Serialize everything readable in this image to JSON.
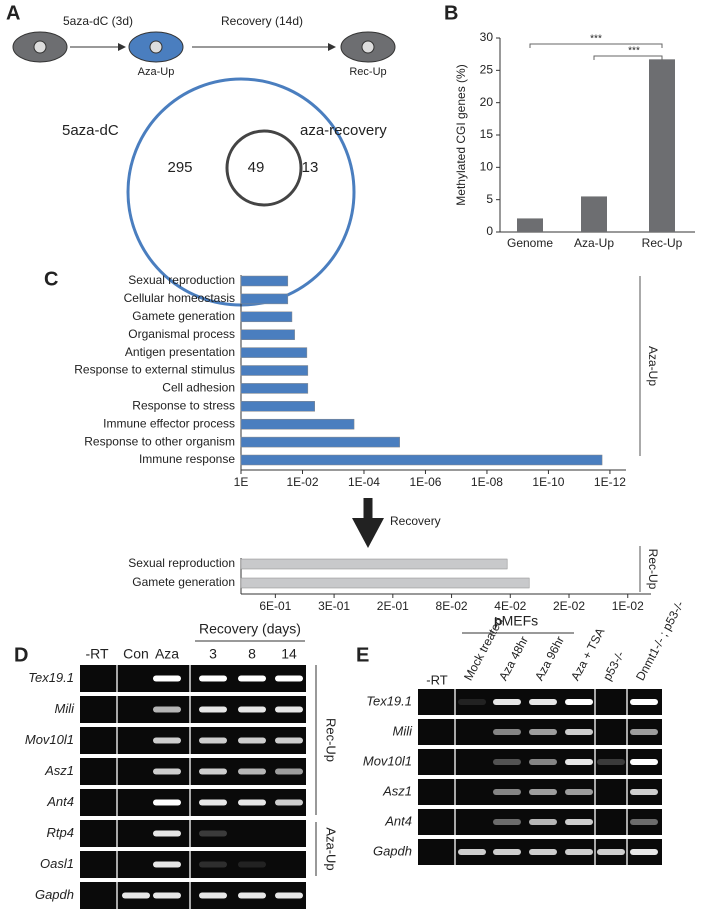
{
  "panels": {
    "a": "A",
    "b": "B",
    "c": "C",
    "d": "D",
    "e": "E"
  },
  "panel_a": {
    "step1": "5aza-dC (3d)",
    "step2": "Recovery (14d)",
    "cell2": "Aza-Up",
    "cell3": "Rec-Up",
    "venn": {
      "left_label": "5aza-dC",
      "right_label": "aza-recovery",
      "left_only": "295",
      "overlap": "49",
      "right_only": "13"
    }
  },
  "chart_data": [
    {
      "type": "bar",
      "y_label": "Methylated CGI genes (%)",
      "categories": [
        "Genome",
        "Aza-Up",
        "Rec-Up"
      ],
      "values": [
        2.1,
        5.5,
        26.7
      ],
      "color": "#6d6e71",
      "ylim": [
        0,
        30
      ],
      "yticks": [
        0,
        5,
        10,
        15,
        20,
        25,
        30
      ],
      "annotations": [
        "***",
        "***"
      ]
    },
    {
      "type": "barh",
      "group_label": "Aza-Up",
      "categories": [
        "Sexual reproduction",
        "Cellular homeostasis",
        "Gamete generation",
        "Organismal process",
        "Antigen presentation",
        "Response to external stimulus",
        "Cell adhesion",
        "Response to stress",
        "Immune effector process",
        "Response to other organism",
        "Immune response"
      ],
      "values": [
        0.03,
        0.03,
        0.022,
        0.018,
        0.0072,
        0.0067,
        0.0067,
        0.004,
        0.00021,
        6.9e-06,
        1.8e-12
      ],
      "color": "#4a7ebf",
      "log_scale": true,
      "xlim": [
        1,
        3e-13
      ],
      "xticks": [
        {
          "value": 1,
          "label": "1E"
        },
        {
          "value": 0.01,
          "label": "1E-02"
        },
        {
          "value": 0.0001,
          "label": "1E-04"
        },
        {
          "value": 1e-06,
          "label": "1E-06"
        },
        {
          "value": 1e-08,
          "label": "1E-08"
        },
        {
          "value": 1e-10,
          "label": "1E-10"
        },
        {
          "value": 1e-12,
          "label": "1E-12"
        }
      ]
    },
    {
      "type": "barh",
      "group_label": "Rec-Up",
      "categories": [
        "Sexual reproduction",
        "Gamete generation"
      ],
      "values": [
        0.0415,
        0.032
      ],
      "color": "#c8c9cb",
      "log_scale": true,
      "xlim": [
        0.96,
        0.0076
      ],
      "xticks": [
        {
          "value": 0.64,
          "label": "6E-01"
        },
        {
          "value": 0.32,
          "label": "3E-01"
        },
        {
          "value": 0.16,
          "label": "2E-01"
        },
        {
          "value": 0.08,
          "label": "8E-02"
        },
        {
          "value": 0.04,
          "label": "4E-02"
        },
        {
          "value": 0.02,
          "label": "2E-02"
        },
        {
          "value": 0.01,
          "label": "1E-02"
        }
      ]
    }
  ],
  "panel_c": {
    "arrow_label": "Recovery"
  },
  "panel_d": {
    "lanes": [
      "-RT",
      "Con",
      "Aza",
      "3",
      "8",
      "14"
    ],
    "recovery_label": "Recovery (days)",
    "genes": [
      "Tex19.1",
      "Mili",
      "Mov10l1",
      "Asz1",
      "Ant4",
      "Rtp4",
      "Oasl1",
      "Gapdh"
    ],
    "groups": [
      "Rec-Up",
      "Aza-Up"
    ]
  },
  "panel_e": {
    "group_label": "pMEFs",
    "lanes": [
      "-RT",
      "Mock treated",
      "Aza 48hr",
      "Aza 96hr",
      "Aza + TSA",
      "p53-/-",
      "Dnmt1-/- ; p53-/-"
    ],
    "genes": [
      "Tex19.1",
      "Mili",
      "Mov10l1",
      "Asz1",
      "Ant4",
      "Gapdh"
    ]
  }
}
